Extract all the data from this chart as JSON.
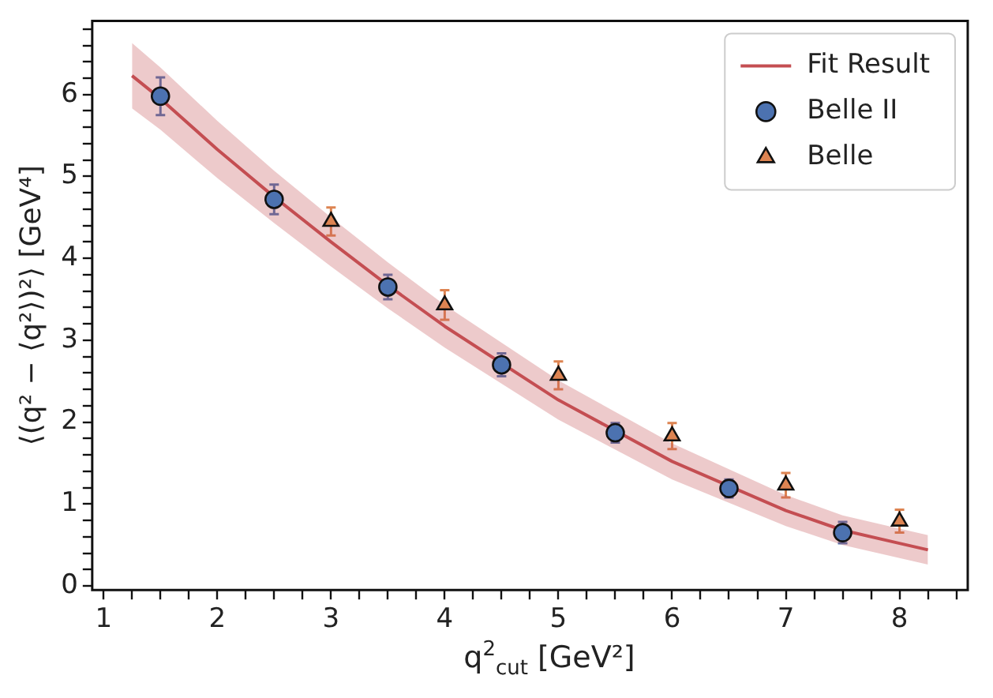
{
  "chart_data": {
    "type": "scatter",
    "xlabel": "q$^{2}$$_{cut}$ [GeV²]",
    "ylabel": "⟨(q² − ⟨q²⟩)²⟩ [GeV⁴]",
    "xlim": [
      0.9,
      8.6
    ],
    "ylim": [
      -0.05,
      6.9
    ],
    "xticks": [
      1,
      {
        "value": 1.25,
        "label": null
      },
      {
        "value": 1.5,
        "label": null
      },
      {
        "value": 1.75,
        "label": null
      },
      2,
      {
        "value": 2.25,
        "label": null
      },
      {
        "value": 2.5,
        "label": null
      },
      {
        "value": 2.75,
        "label": null
      },
      3,
      {
        "value": 3.25,
        "label": null
      },
      {
        "value": 3.5,
        "label": null
      },
      {
        "value": 3.75,
        "label": null
      },
      4,
      {
        "value": 4.25,
        "label": null
      },
      {
        "value": 4.5,
        "label": null
      },
      {
        "value": 4.75,
        "label": null
      },
      5,
      {
        "value": 5.25,
        "label": null
      },
      {
        "value": 5.5,
        "label": null
      },
      {
        "value": 5.75,
        "label": null
      },
      6,
      {
        "value": 6.25,
        "label": null
      },
      {
        "value": 6.5,
        "label": null
      },
      {
        "value": 6.75,
        "label": null
      },
      7,
      {
        "value": 7.25,
        "label": null
      },
      {
        "value": 7.5,
        "label": null
      },
      {
        "value": 7.75,
        "label": null
      },
      8,
      {
        "value": 8.25,
        "label": null
      },
      {
        "value": 8.5,
        "label": null
      }
    ],
    "yticks": [
      0,
      {
        "value": 0.2,
        "label": null
      },
      {
        "value": 0.4,
        "label": null
      },
      {
        "value": 0.6,
        "label": null
      },
      {
        "value": 0.8,
        "label": null
      },
      1,
      {
        "value": 1.2,
        "label": null
      },
      {
        "value": 1.4,
        "label": null
      },
      {
        "value": 1.6,
        "label": null
      },
      {
        "value": 1.8,
        "label": null
      },
      2,
      {
        "value": 2.2,
        "label": null
      },
      {
        "value": 2.4,
        "label": null
      },
      {
        "value": 2.6,
        "label": null
      },
      {
        "value": 2.8,
        "label": null
      },
      3,
      {
        "value": 3.2,
        "label": null
      },
      {
        "value": 3.4,
        "label": null
      },
      {
        "value": 3.6,
        "label": null
      },
      {
        "value": 3.8,
        "label": null
      },
      4,
      {
        "value": 4.2,
        "label": null
      },
      {
        "value": 4.4,
        "label": null
      },
      {
        "value": 4.6,
        "label": null
      },
      {
        "value": 4.8,
        "label": null
      },
      5,
      {
        "value": 5.2,
        "label": null
      },
      {
        "value": 5.4,
        "label": null
      },
      {
        "value": 5.6,
        "label": null
      },
      {
        "value": 5.8,
        "label": null
      },
      6,
      {
        "value": 6.2,
        "label": null
      },
      {
        "value": 6.4,
        "label": null
      },
      {
        "value": 6.6,
        "label": null
      },
      {
        "value": 6.8,
        "label": null
      }
    ],
    "grid": false,
    "legend": "top right",
    "series": [
      {
        "name": "Fit Result",
        "type": "line",
        "marker": "none",
        "color": "#c44e52",
        "x": [
          1.25,
          1.5,
          2,
          2.5,
          3,
          3.5,
          4,
          5,
          6,
          7,
          7.5,
          8,
          8.25
        ],
        "values": [
          6.23,
          5.95,
          5.33,
          4.75,
          4.2,
          3.67,
          3.17,
          2.27,
          1.52,
          0.92,
          0.68,
          0.52,
          0.44
        ],
        "lower": [
          5.83,
          5.57,
          4.98,
          4.43,
          3.9,
          3.39,
          2.91,
          2.03,
          1.3,
          0.73,
          0.5,
          0.34,
          0.26
        ],
        "upper": [
          6.63,
          6.33,
          5.68,
          5.07,
          4.5,
          3.95,
          3.43,
          2.51,
          1.74,
          1.11,
          0.86,
          0.7,
          0.62
        ]
      },
      {
        "name": "Belle II",
        "marker": "circle",
        "color": "#4c72b0",
        "x": [
          1.5,
          2.5,
          3.5,
          4.5,
          5.5,
          6.5,
          7.5
        ],
        "values": [
          5.98,
          4.72,
          3.65,
          2.7,
          1.87,
          1.19,
          0.65
        ],
        "errors": [
          0.23,
          0.18,
          0.15,
          0.14,
          0.12,
          0.11,
          0.13
        ]
      },
      {
        "name": "Belle",
        "marker": "triangle",
        "color": "#dd8452",
        "x": [
          3,
          4,
          5,
          6,
          7,
          8
        ],
        "values": [
          4.45,
          3.43,
          2.57,
          1.83,
          1.23,
          0.79
        ],
        "errors": [
          0.17,
          0.18,
          0.17,
          0.16,
          0.15,
          0.14
        ]
      }
    ]
  }
}
